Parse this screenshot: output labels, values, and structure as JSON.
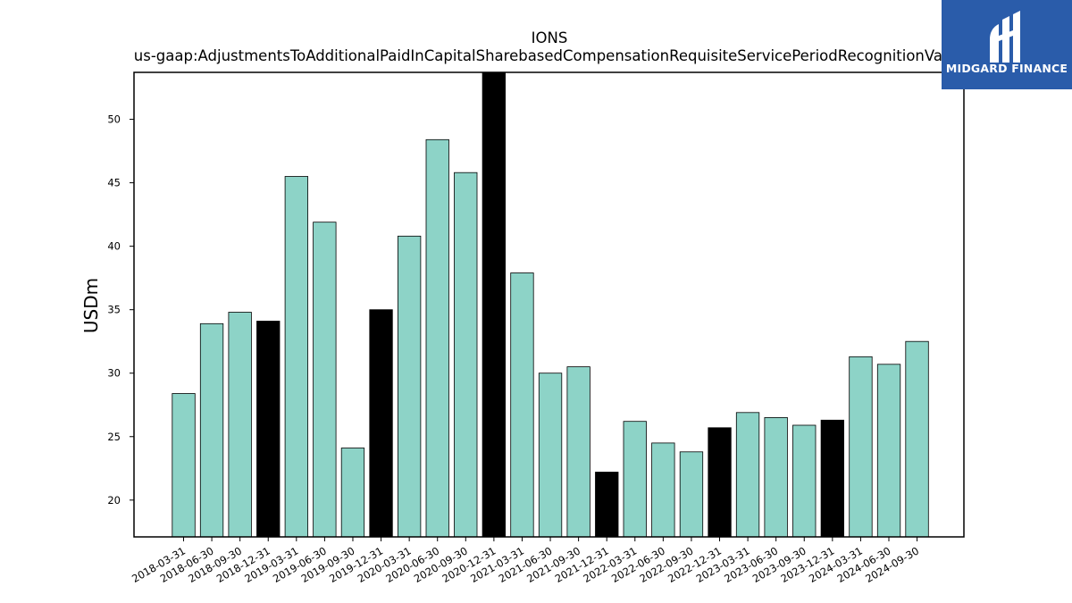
{
  "chart_data": {
    "type": "bar",
    "title": "IONS",
    "subtitle": "us-gaap:AdjustmentsToAdditionalPaidInCapitalSharebasedCompensationRequisiteServicePeriodRecognitionValue",
    "xlabel": "",
    "ylabel": "USDm",
    "ylim": [
      17.1,
      53.7
    ],
    "yticks": [
      20,
      25,
      30,
      35,
      40,
      45,
      50
    ],
    "grid": false,
    "categories": [
      "2018-03-31",
      "2018-06-30",
      "2018-09-30",
      "2018-12-31",
      "2019-03-31",
      "2019-06-30",
      "2019-09-30",
      "2019-12-31",
      "2020-03-31",
      "2020-06-30",
      "2020-09-30",
      "2020-12-31",
      "2021-03-31",
      "2021-06-30",
      "2021-09-30",
      "2021-12-31",
      "2022-03-31",
      "2022-06-30",
      "2022-09-30",
      "2022-12-31",
      "2023-03-31",
      "2023-06-30",
      "2023-09-30",
      "2023-12-31",
      "2024-03-31",
      "2024-06-30",
      "2024-09-30"
    ],
    "values": [
      28.4,
      33.9,
      34.8,
      34.1,
      45.5,
      41.9,
      24.1,
      35.0,
      40.8,
      48.4,
      45.8,
      53.7,
      37.9,
      30.0,
      30.5,
      22.2,
      26.2,
      24.5,
      23.8,
      25.7,
      26.9,
      26.5,
      25.9,
      26.3,
      31.3,
      30.7,
      32.5
    ],
    "highlight_quarter": "12-31",
    "colors": {
      "bar": "#8dd3c7",
      "highlight": "#000000",
      "edge": "#000000"
    }
  },
  "logo": {
    "text": "MIDGARD FINANCE",
    "background": "#2a5caa"
  }
}
